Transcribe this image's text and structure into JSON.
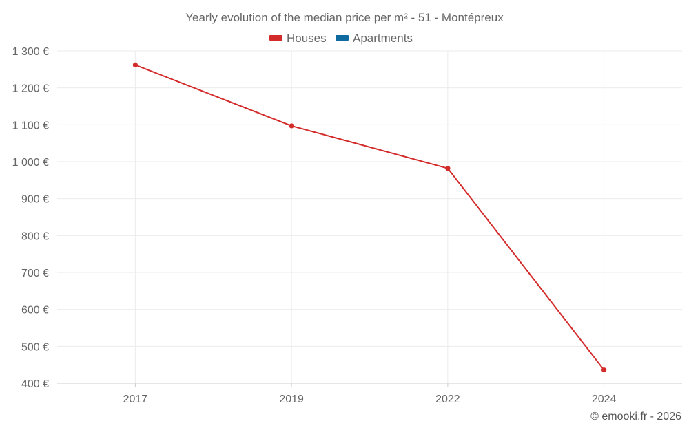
{
  "chart_data": {
    "type": "line",
    "title": "Yearly evolution of the median price per m² - 51 - Montépreux",
    "categories": [
      "2017",
      "2019",
      "2022",
      "2024"
    ],
    "series": [
      {
        "name": "Houses",
        "color": "#d32a2a",
        "values": [
          1262,
          1097,
          982,
          436
        ]
      },
      {
        "name": "Apartments",
        "color": "#0f6aa0",
        "values": [
          null,
          null,
          null,
          null
        ]
      }
    ],
    "ylim": [
      400,
      1300
    ],
    "yticks": [
      400,
      500,
      600,
      700,
      800,
      900,
      1000,
      1100,
      1200,
      1300
    ],
    "ytick_labels": [
      "400 €",
      "500 €",
      "600 €",
      "700 €",
      "800 €",
      "900 €",
      "1 000 €",
      "1 100 €",
      "1 200 €",
      "1 300 €"
    ],
    "xlabel": "",
    "ylabel": "",
    "grid": true,
    "legend_position": "top-center"
  },
  "credit": "© emooki.fr - 2026"
}
